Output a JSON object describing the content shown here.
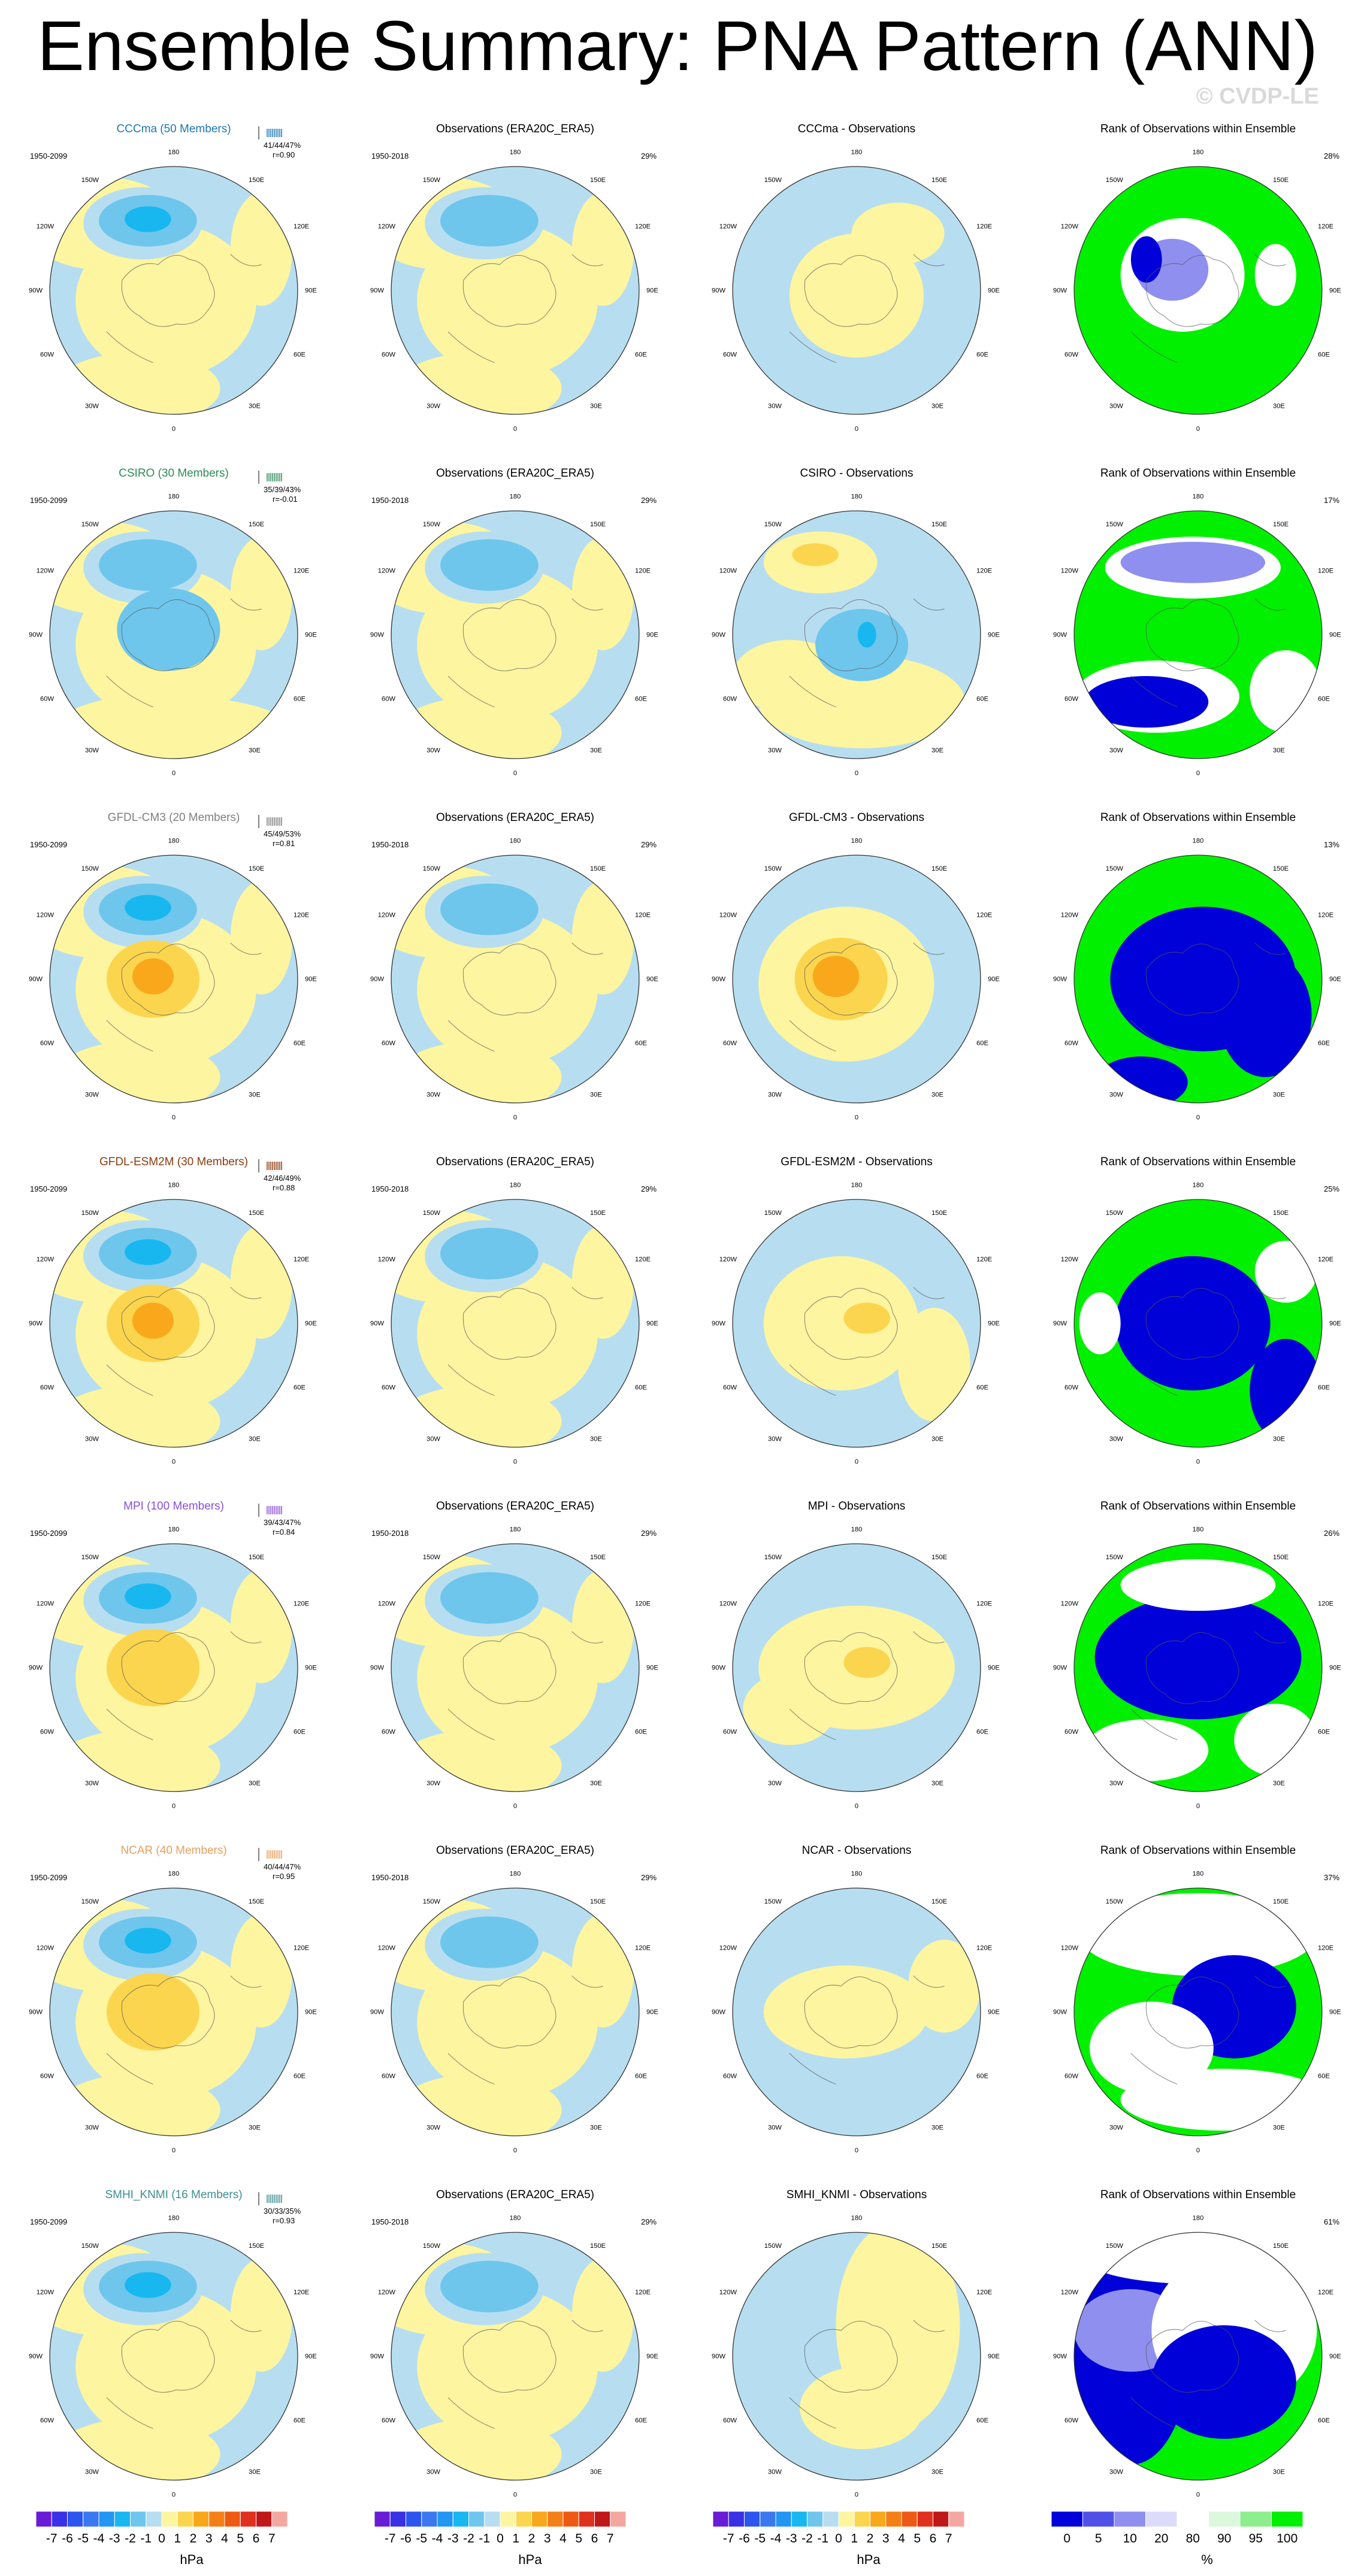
{
  "page": {
    "title": "Ensemble Summary: PNA Pattern (ANN)",
    "watermark": "© CVDP-LE"
  },
  "colors": {
    "neg1": "#b7def0",
    "neg2": "#6ec6ec",
    "neg3": "#18b7f0",
    "pos1": "#fdf5a0",
    "pos2": "#fcd54e",
    "pos3": "#f9a81c",
    "rank_low": "#0000d8",
    "rank_mid": "#8f8ff0",
    "rank_light": "#dcdcfa",
    "rank_high": "#00f000",
    "rank_paleg": "#c8f5c8"
  },
  "map_labels": {
    "top": "180",
    "bottom": "0",
    "left": "90W",
    "right": "90E",
    "upper_left_a": "150W",
    "upper_left_b": "120W",
    "upper_right_a": "150E",
    "upper_right_b": "120E",
    "lower_left_a": "60W",
    "lower_left_b": "30W",
    "lower_right_a": "60E",
    "lower_right_b": "30E"
  },
  "obs_title": "Observations (ERA20C_ERA5)",
  "obs_years": "1950-2018",
  "obs_pct": "29%",
  "rank_title": "Rank of Observations within Ensemble",
  "rows": [
    {
      "model": "CCCma (50 Members)",
      "model_color": "#1f77b4",
      "years": "1950-2099",
      "stats": "41/44/47%",
      "r": "r=0.90",
      "diff_title": "CCCma - Observations",
      "rank_pct": "28%"
    },
    {
      "model": "CSIRO (30 Members)",
      "model_color": "#2e8b57",
      "years": "1950-2099",
      "stats": "35/39/43%",
      "r": "r=-0.01",
      "diff_title": "CSIRO - Observations",
      "rank_pct": "17%"
    },
    {
      "model": "GFDL-CM3 (20 Members)",
      "model_color": "#7f7f7f",
      "years": "1950-2099",
      "stats": "45/49/53%",
      "r": "r=0.81",
      "diff_title": "GFDL-CM3 - Observations",
      "rank_pct": "13%"
    },
    {
      "model": "GFDL-ESM2M (30 Members)",
      "model_color": "#8b3a0f",
      "years": "1950-2099",
      "stats": "42/46/49%",
      "r": "r=0.88",
      "diff_title": "GFDL-ESM2M - Observations",
      "rank_pct": "25%"
    },
    {
      "model": "MPI (100 Members)",
      "model_color": "#8a4fd8",
      "years": "1950-2099",
      "stats": "39/43/47%",
      "r": "r=0.84",
      "diff_title": "MPI - Observations",
      "rank_pct": "26%"
    },
    {
      "model": "NCAR (40 Members)",
      "model_color": "#e8a060",
      "years": "1950-2099",
      "stats": "40/44/47%",
      "r": "r=0.95",
      "diff_title": "NCAR - Observations",
      "rank_pct": "37%"
    },
    {
      "model": "SMHI_KNMI (16 Members)",
      "model_color": "#3f8f8f",
      "years": "1950-2099",
      "stats": "30/33/35%",
      "r": "r=0.93",
      "diff_title": "SMHI_KNMI - Observations",
      "rank_pct": "61%"
    }
  ],
  "chart_data": {
    "type": "heatmap",
    "projection": "north polar stereographic",
    "units": "hPa",
    "hpa_colorbar": {
      "tick_labels": [
        "-7",
        "-6",
        "-5",
        "-4",
        "-3",
        "-2",
        "-1",
        "0",
        "1",
        "2",
        "3",
        "4",
        "5",
        "6",
        "7"
      ],
      "colors": [
        "#6a1bd6",
        "#3a30e6",
        "#2c55f0",
        "#3a78f0",
        "#2196f3",
        "#18b7f0",
        "#6ec6ec",
        "#b7def0",
        "#fdf5a0",
        "#fcd54e",
        "#f9a81c",
        "#f57f17",
        "#ee5a14",
        "#e0301e",
        "#c01818",
        "#f4a7a0"
      ],
      "unit_label": "hPa"
    },
    "rank_colorbar": {
      "tick_labels": [
        "0",
        "5",
        "10",
        "20",
        "80",
        "90",
        "95",
        "100"
      ],
      "colors": [
        "#0000d8",
        "#5050e8",
        "#8f8ff0",
        "#dcdcfa",
        "#ffffff",
        "#dcf8dc",
        "#8cee8c",
        "#00f000"
      ],
      "unit_label": "%"
    }
  }
}
